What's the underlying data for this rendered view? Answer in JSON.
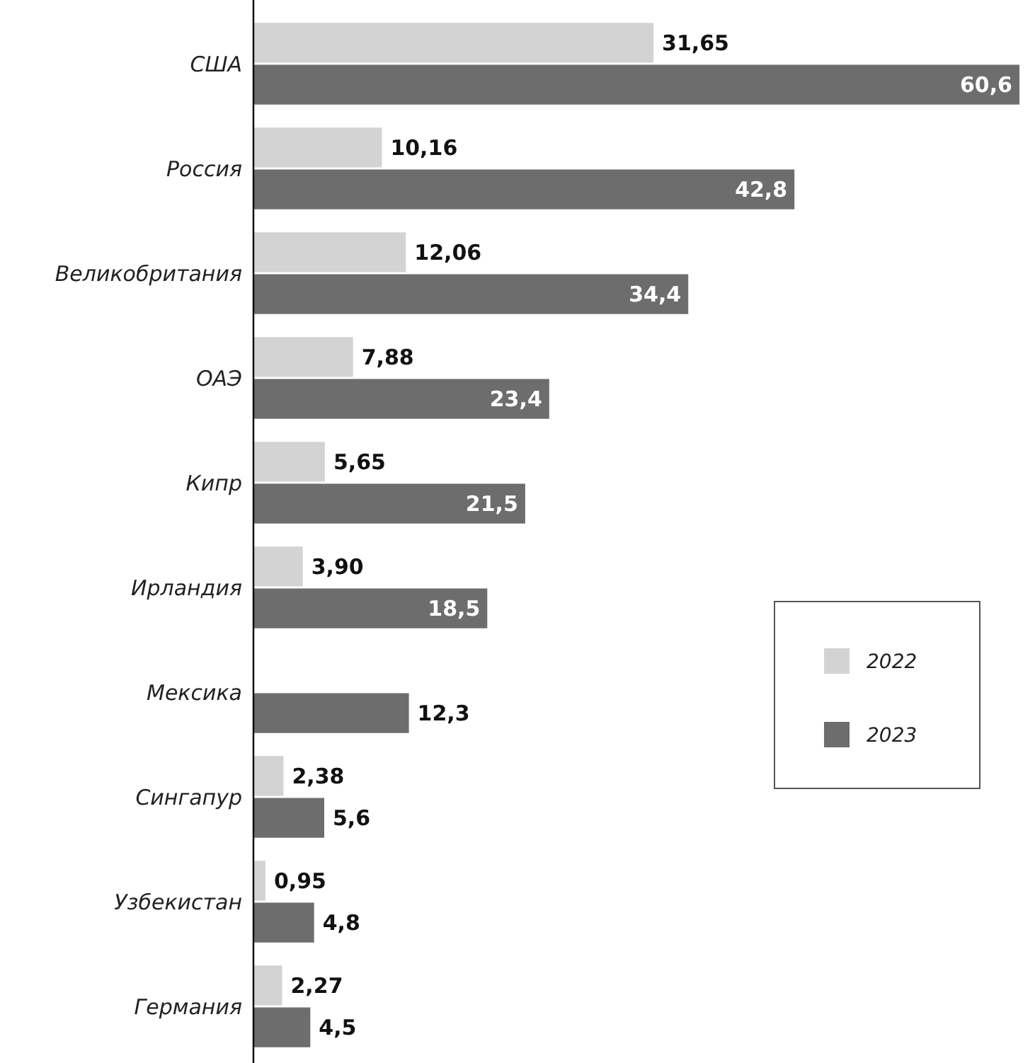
{
  "chart_data": {
    "type": "bar",
    "orientation": "horizontal",
    "categories": [
      "США",
      "Россия",
      "Великобритания",
      "ОАЭ",
      "Кипр",
      "Ирландия",
      "Мексика",
      "Сингапур",
      "Узбекистан",
      "Германия"
    ],
    "series": [
      {
        "name": "2022",
        "color": "#d3d3d3",
        "values": [
          31.65,
          10.16,
          12.06,
          7.88,
          5.65,
          3.9,
          null,
          2.38,
          0.95,
          2.27
        ],
        "value_labels": [
          "31,65",
          "10,16",
          "12,06",
          "7,88",
          "5,65",
          "3,90",
          null,
          "2,38",
          "0,95",
          "2,27"
        ]
      },
      {
        "name": "2023",
        "color": "#6d6d6d",
        "values": [
          60.6,
          42.8,
          34.4,
          23.4,
          21.5,
          18.5,
          12.3,
          5.6,
          4.8,
          4.5
        ],
        "value_labels": [
          "60,6",
          "42,8",
          "34,4",
          "23,4",
          "21,5",
          "18,5",
          "12,3",
          "5,6",
          "4,8",
          "4,5"
        ]
      }
    ],
    "legend": "right"
  }
}
